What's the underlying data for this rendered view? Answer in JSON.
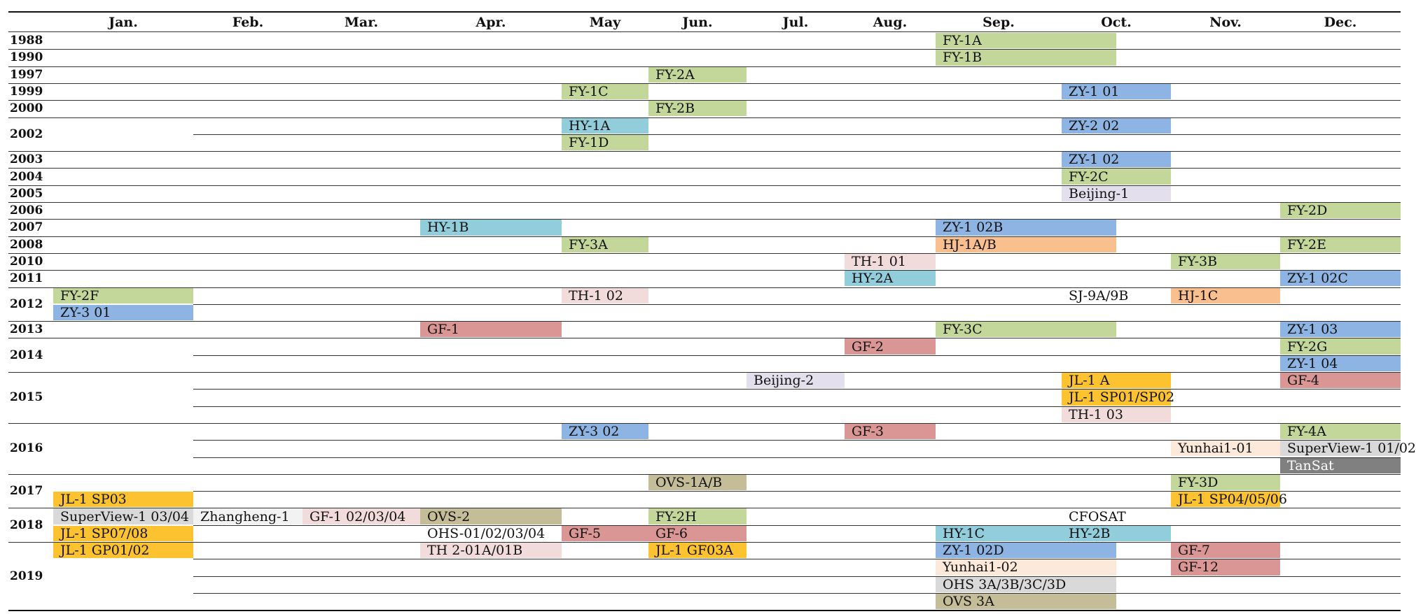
{
  "months": [
    "Jan.",
    "Feb.",
    "Mar.",
    "Apr.",
    "May",
    "Jun.",
    "Jul.",
    "Aug.",
    "Sep.",
    "Oct.",
    "Nov.",
    "Dec."
  ],
  "years": [
    {
      "label": "1988",
      "rows": 1
    },
    {
      "label": "1990",
      "rows": 1
    },
    {
      "label": "1997",
      "rows": 1
    },
    {
      "label": "1999",
      "rows": 1
    },
    {
      "label": "2000",
      "rows": 1
    },
    {
      "label": "2002",
      "rows": 2
    },
    {
      "label": "2003",
      "rows": 1
    },
    {
      "label": "2004",
      "rows": 1
    },
    {
      "label": "2005",
      "rows": 1
    },
    {
      "label": "2006",
      "rows": 1
    },
    {
      "label": "2007",
      "rows": 1
    },
    {
      "label": "2008",
      "rows": 1
    },
    {
      "label": "2010",
      "rows": 1
    },
    {
      "label": "2011",
      "rows": 1
    },
    {
      "label": "2012",
      "rows": 2
    },
    {
      "label": "2013",
      "rows": 1
    },
    {
      "label": "2014",
      "rows": 2
    },
    {
      "label": "2015",
      "rows": 3
    },
    {
      "label": "2016",
      "rows": 3
    },
    {
      "label": "2017",
      "rows": 2
    },
    {
      "label": "2018",
      "rows": 2
    },
    {
      "label": "2019",
      "rows": 4
    }
  ],
  "colors": {
    "fy": "#c4d79b",
    "zy": "#8db4e2",
    "hy": "#92cddc",
    "beijing": "#e4dfec",
    "hj": "#fabf8f",
    "th": "#f2dcdb",
    "gf": "#da9694",
    "jl": "#fcc230",
    "yunhai": "#fde9d9",
    "superview": "#d9d9d9",
    "zhangheng": "#f2f2f2",
    "ovs": "#c4bd97",
    "tansat": "#808080",
    "none": "transparent"
  },
  "entries": [
    {
      "label": "FY-1A",
      "month": 8,
      "span": 1.5,
      "row": 0,
      "color": "fy"
    },
    {
      "label": "FY-1B",
      "month": 8,
      "span": 1.5,
      "row": 1,
      "color": "fy"
    },
    {
      "label": "FY-2A",
      "month": 5,
      "span": 1,
      "row": 2,
      "color": "fy"
    },
    {
      "label": "FY-1C",
      "month": 4,
      "span": 1,
      "row": 3,
      "color": "fy"
    },
    {
      "label": "ZY-1 01",
      "month": 9,
      "span": 1,
      "row": 3,
      "color": "zy"
    },
    {
      "label": "FY-2B",
      "month": 5,
      "span": 1,
      "row": 4,
      "color": "fy"
    },
    {
      "label": "HY-1A",
      "month": 4,
      "span": 1,
      "row": 5,
      "color": "hy"
    },
    {
      "label": "ZY-2 02",
      "month": 9,
      "span": 1,
      "row": 5,
      "color": "zy"
    },
    {
      "label": "FY-1D",
      "month": 4,
      "span": 1,
      "row": 6,
      "color": "fy"
    },
    {
      "label": "ZY-1 02",
      "month": 9,
      "span": 1,
      "row": 7,
      "color": "zy"
    },
    {
      "label": "FY-2C",
      "month": 9,
      "span": 1,
      "row": 8,
      "color": "fy"
    },
    {
      "label": "Beijing-1",
      "month": 9,
      "span": 1,
      "row": 9,
      "color": "beijing"
    },
    {
      "label": "FY-2D",
      "month": 11,
      "span": 1,
      "row": 10,
      "color": "fy"
    },
    {
      "label": "HY-1B",
      "month": 3,
      "span": 1,
      "row": 11,
      "color": "hy"
    },
    {
      "label": "ZY-1 02B",
      "month": 8,
      "span": 1.5,
      "row": 11,
      "color": "zy"
    },
    {
      "label": "FY-3A",
      "month": 4,
      "span": 1,
      "row": 12,
      "color": "fy"
    },
    {
      "label": "HJ-1A/B",
      "month": 8,
      "span": 1.5,
      "row": 12,
      "color": "hj"
    },
    {
      "label": "FY-2E",
      "month": 11,
      "span": 1,
      "row": 12,
      "color": "fy"
    },
    {
      "label": "TH-1 01",
      "month": 7,
      "span": 1,
      "row": 13,
      "color": "th"
    },
    {
      "label": "FY-3B",
      "month": 10,
      "span": 1,
      "row": 13,
      "color": "fy"
    },
    {
      "label": "HY-2A",
      "month": 7,
      "span": 1,
      "row": 14,
      "color": "hy"
    },
    {
      "label": "ZY-1 02C",
      "month": 11,
      "span": 1,
      "row": 14,
      "color": "zy"
    },
    {
      "label": "FY-2F",
      "month": 0,
      "span": 1,
      "row": 15,
      "color": "fy"
    },
    {
      "label": "TH-1 02",
      "month": 4,
      "span": 1,
      "row": 15,
      "color": "th"
    },
    {
      "label": "SJ-9A/9B",
      "month": 9,
      "span": 1,
      "row": 15,
      "color": "none"
    },
    {
      "label": "HJ-1C",
      "month": 10,
      "span": 1,
      "row": 15,
      "color": "hj"
    },
    {
      "label": "ZY-3 01",
      "month": 0,
      "span": 1,
      "row": 16,
      "color": "zy"
    },
    {
      "label": "GF-1",
      "month": 3,
      "span": 1,
      "row": 17,
      "color": "gf"
    },
    {
      "label": "FY-3C",
      "month": 8,
      "span": 1.5,
      "row": 17,
      "color": "fy"
    },
    {
      "label": "ZY-1 03",
      "month": 11,
      "span": 1,
      "row": 17,
      "color": "zy"
    },
    {
      "label": "GF-2",
      "month": 7,
      "span": 1,
      "row": 18,
      "color": "gf"
    },
    {
      "label": "FY-2G",
      "month": 11,
      "span": 1,
      "row": 18,
      "color": "fy"
    },
    {
      "label": "ZY-1 04",
      "month": 11,
      "span": 1,
      "row": 19,
      "color": "zy"
    },
    {
      "label": "Beijing-2",
      "month": 6,
      "span": 1,
      "row": 20,
      "color": "beijing"
    },
    {
      "label": "JL-1 A",
      "month": 9,
      "span": 1,
      "row": 20,
      "color": "jl"
    },
    {
      "label": "GF-4",
      "month": 11,
      "span": 1,
      "row": 20,
      "color": "gf"
    },
    {
      "label": "JL-1 SP01/SP02",
      "month": 9,
      "span": 1,
      "row": 21,
      "color": "jl"
    },
    {
      "label": "TH-1 03",
      "month": 9,
      "span": 1,
      "row": 22,
      "color": "th"
    },
    {
      "label": "ZY-3 02",
      "month": 4,
      "span": 1,
      "row": 23,
      "color": "zy"
    },
    {
      "label": "GF-3",
      "month": 7,
      "span": 1,
      "row": 23,
      "color": "gf"
    },
    {
      "label": "FY-4A",
      "month": 11,
      "span": 1,
      "row": 23,
      "color": "fy"
    },
    {
      "label": "Yunhai1-01",
      "month": 10,
      "span": 1,
      "row": 24,
      "color": "yunhai"
    },
    {
      "label": "SuperView-1 01/02",
      "month": 11,
      "span": 1,
      "row": 24,
      "color": "superview"
    },
    {
      "label": "TanSat",
      "month": 11,
      "span": 1,
      "row": 25,
      "color": "tansat"
    },
    {
      "label": "OVS-1A/B",
      "month": 5,
      "span": 1,
      "row": 26,
      "color": "ovs"
    },
    {
      "label": "FY-3D",
      "month": 10,
      "span": 1,
      "row": 26,
      "color": "fy"
    },
    {
      "label": "JL-1 SP03",
      "month": 0,
      "span": 1,
      "row": 27,
      "color": "jl"
    },
    {
      "label": "JL-1 SP04/05/06",
      "month": 10,
      "span": 1,
      "row": 27,
      "color": "jl"
    },
    {
      "label": "SuperView-1 03/04",
      "month": 0,
      "span": 1,
      "row": 28,
      "color": "superview"
    },
    {
      "label": "Zhangheng-1",
      "month": 1,
      "span": 1,
      "row": 28,
      "color": "zhangheng"
    },
    {
      "label": "GF-1 02/03/04",
      "month": 2,
      "span": 1,
      "row": 28,
      "color": "th"
    },
    {
      "label": "OVS-2",
      "month": 3,
      "span": 1,
      "row": 28,
      "color": "ovs"
    },
    {
      "label": "FY-2H",
      "month": 5,
      "span": 1,
      "row": 28,
      "color": "fy"
    },
    {
      "label": "CFOSAT",
      "month": 9,
      "span": 1,
      "row": 28,
      "color": "none"
    },
    {
      "label": "JL-1 SP07/08",
      "month": 0,
      "span": 1,
      "row": 29,
      "color": "jl"
    },
    {
      "label": "OHS-01/02/03/04",
      "month": 3,
      "span": 1,
      "row": 29,
      "color": "none"
    },
    {
      "label": "GF-5",
      "month": 4,
      "span": 1,
      "row": 29,
      "color": "gf"
    },
    {
      "label": "GF-6",
      "month": 5,
      "span": 1,
      "row": 29,
      "color": "gf"
    },
    {
      "label": "HY-1C",
      "month": 8,
      "span": 1.5,
      "row": 29,
      "color": "hy"
    },
    {
      "label": "HY-2B",
      "month": 9,
      "span": 1,
      "row": 29,
      "color": "hy"
    },
    {
      "label": "JL-1 GP01/02",
      "month": 0,
      "span": 1,
      "row": 30,
      "color": "jl"
    },
    {
      "label": "TH 2-01A/01B",
      "month": 3,
      "span": 1,
      "row": 30,
      "color": "th"
    },
    {
      "label": "JL-1 GF03A",
      "month": 5,
      "span": 1,
      "row": 30,
      "color": "jl"
    },
    {
      "label": "ZY-1 02D",
      "month": 8,
      "span": 1.5,
      "row": 30,
      "color": "zy"
    },
    {
      "label": "GF-7",
      "month": 10,
      "span": 1,
      "row": 30,
      "color": "gf"
    },
    {
      "label": "Yunhai1-02",
      "month": 8,
      "span": 1.5,
      "row": 31,
      "color": "yunhai"
    },
    {
      "label": "GF-12",
      "month": 10,
      "span": 1,
      "row": 31,
      "color": "gf"
    },
    {
      "label": "OHS 3A/3B/3C/3D",
      "month": 8,
      "span": 1.5,
      "row": 32,
      "color": "superview"
    },
    {
      "label": "OVS 3A",
      "month": 8,
      "span": 1.5,
      "row": 33,
      "color": "ovs"
    }
  ]
}
